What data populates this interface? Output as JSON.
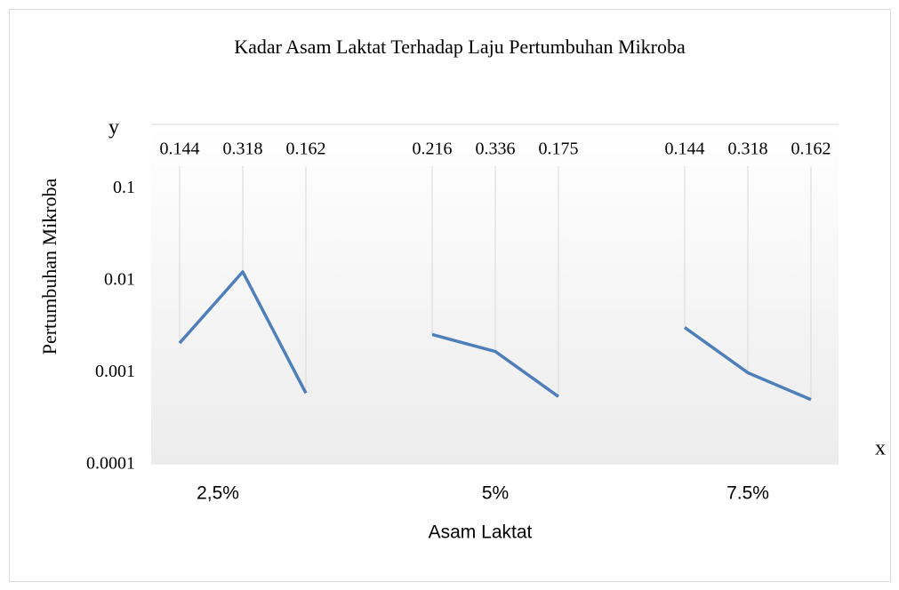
{
  "chart_data": {
    "type": "line",
    "title": "Kadar Asam Laktat Terhadap Laju Pertumbuhan Mikroba",
    "x_label": "Asam Laktat",
    "y_label": "Pertumbuhan Mikroba",
    "annotations": [
      "y",
      "x"
    ],
    "color": "#4f7fb8",
    "log_y": true,
    "ylim": [
      0.0001,
      0.5
    ],
    "yticks": [
      0.0001,
      0.001,
      0.01,
      0.1
    ],
    "groups": [
      {
        "label": "2,5%",
        "categories": [
          "0.144",
          "0.318",
          "0.162"
        ],
        "values": [
          0.0021,
          0.0125,
          0.0006
        ]
      },
      {
        "label": "5%",
        "categories": [
          "0.216",
          "0.336",
          "0.175"
        ],
        "values": [
          0.0026,
          0.0017,
          0.00055
        ]
      },
      {
        "label": "7.5%",
        "categories": [
          "0.144",
          "0.318",
          "0.162"
        ],
        "values": [
          0.0031,
          0.001,
          0.00051
        ]
      }
    ]
  }
}
